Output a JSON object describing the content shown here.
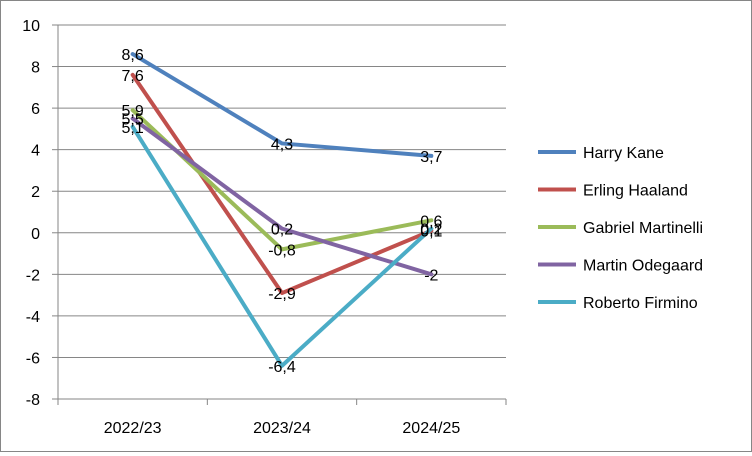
{
  "chart_data": {
    "type": "line",
    "categories": [
      "2022/23",
      "2023/24",
      "2024/25"
    ],
    "ylim": [
      -8,
      10
    ],
    "yticks": [
      10,
      8,
      6,
      4,
      2,
      0,
      -2,
      -4,
      -6,
      -8
    ],
    "ytick_labels": [
      "10",
      "8",
      "6",
      "4",
      "2",
      "0",
      "-2",
      "-4",
      "-6",
      "-8"
    ],
    "grid": "horizontal major gridlines",
    "legend": "right",
    "decimal_separator": ",",
    "series": [
      {
        "name": "Harry Kane",
        "color": "#4F81BD",
        "values": [
          8.6,
          4.3,
          3.7
        ],
        "labels": [
          "8,6",
          "4,3",
          "3,7"
        ]
      },
      {
        "name": "Erling Haaland",
        "color": "#C0504D",
        "values": [
          7.6,
          -2.9,
          0.1
        ],
        "labels": [
          "7,6",
          "-2,9",
          "0,1"
        ]
      },
      {
        "name": "Gabriel Martinelli",
        "color": "#9BBB59",
        "values": [
          5.9,
          -0.8,
          0.6
        ],
        "labels": [
          "5,9",
          "-0,8",
          "0,6"
        ]
      },
      {
        "name": "Martin Odegaard",
        "color": "#8064A2",
        "values": [
          5.5,
          0.2,
          -2
        ],
        "labels": [
          "5,5",
          "0,2",
          "-2"
        ]
      },
      {
        "name": "Roberto Firmino",
        "color": "#4BACC6",
        "values": [
          5.1,
          -6.4,
          0.2
        ],
        "labels": [
          "5,1",
          "-6,4",
          "0,2"
        ]
      }
    ]
  }
}
